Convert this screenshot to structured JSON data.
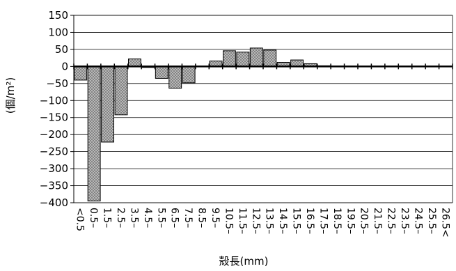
{
  "chart_data": {
    "type": "bar",
    "title": "",
    "xlabel": "殻長(mm)",
    "ylabel": "(個/m²)",
    "ylim": [
      -400,
      150
    ],
    "yticks": [
      150,
      100,
      50,
      0,
      -50,
      -100,
      -150,
      -200,
      -250,
      -300,
      -350,
      -400
    ],
    "grid": "horizontal",
    "legend": "none",
    "bar_fill": "crosshatch gray",
    "bar_colors": {
      "fill": "#c8c8c8",
      "hatch": "#7a7a7a",
      "edge": "#000000"
    },
    "categories": [
      "<0.5",
      "0.5–",
      "1.5–",
      "2.5–",
      "3.5–",
      "4.5–",
      "5.5–",
      "6.5–",
      "7.5–",
      "8.5–",
      "9.5–",
      "10.5–",
      "11.5–",
      "12.5–",
      "13.5–",
      "14.5–",
      "15.5–",
      "16.5–",
      "17.5–",
      "18.5–",
      "19.5–",
      "20.5–",
      "21.5–",
      "22.5–",
      "23.5–",
      "24.5–",
      "25.5–",
      "26.5<"
    ],
    "values": [
      -40,
      -395,
      -222,
      -142,
      22,
      -3,
      -35,
      -64,
      -48,
      0,
      16,
      46,
      42,
      54,
      48,
      12,
      19,
      8,
      2,
      1,
      0,
      0,
      0,
      0,
      0,
      0,
      0,
      0
    ]
  }
}
